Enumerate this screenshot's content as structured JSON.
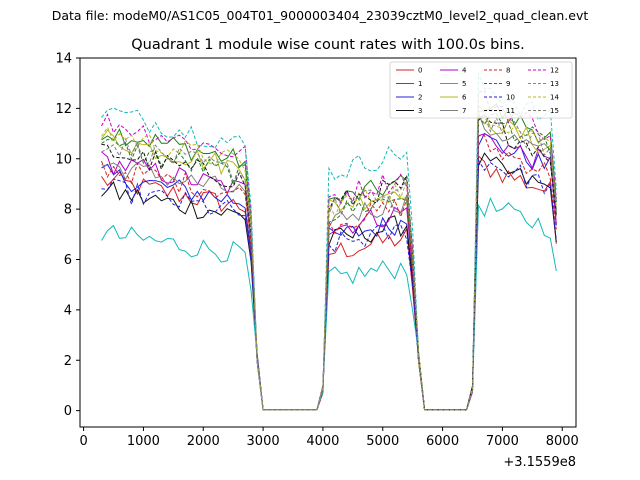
{
  "chart_data": {
    "type": "line",
    "suptitle": "Data file: modeM0/AS1C05_004T01_9000003404_23039cztM0_level2_quad_clean.evt",
    "title": "Quadrant 1 module wise count rates with 100.0s bins.",
    "xlabel": "",
    "ylabel": "",
    "x_offset_label": "+3.1559e8",
    "xlim": [
      -60,
      8230
    ],
    "ylim": [
      -0.65,
      14
    ],
    "x_ticks": [
      0,
      1000,
      2000,
      3000,
      4000,
      5000,
      6000,
      7000,
      8000
    ],
    "y_ticks": [
      0,
      2,
      4,
      6,
      8,
      10,
      12,
      14
    ],
    "x_tick_labels": [
      "0",
      "1000",
      "2000",
      "3000",
      "4000",
      "5000",
      "6000",
      "7000",
      "8000"
    ],
    "y_tick_labels": [
      "0",
      "2",
      "4",
      "6",
      "8",
      "10",
      "12",
      "14"
    ],
    "legend_position": "top-right",
    "bin_start": 300,
    "bin_width": 100,
    "segments": [
      {
        "start": 300,
        "end": 2800
      },
      {
        "start": 4100,
        "end": 5500
      },
      {
        "start": 6600,
        "end": 7900
      }
    ],
    "series": [
      {
        "name": "0",
        "color": "#d62020",
        "dash": false,
        "levels": [
          8.6,
          6.6,
          9.2
        ]
      },
      {
        "name": "1",
        "color": "#1f7f1f",
        "dash": false,
        "levels": [
          10.5,
          8.7,
          11.5
        ]
      },
      {
        "name": "2",
        "color": "#2020e0",
        "dash": false,
        "levels": [
          8.8,
          7.2,
          10.2
        ]
      },
      {
        "name": "3",
        "color": "#111111",
        "dash": false,
        "levels": [
          8.2,
          7.1,
          9.3
        ]
      },
      {
        "name": "4",
        "color": "#b000c8",
        "dash": false,
        "levels": [
          9.3,
          7.6,
          10.3
        ]
      },
      {
        "name": "5",
        "color": "#14b8b8",
        "dash": false,
        "levels": [
          6.6,
          5.5,
          7.7
        ]
      },
      {
        "name": "6",
        "color": "#b8b820",
        "dash": false,
        "levels": [
          10.2,
          8.5,
          11.0
        ]
      },
      {
        "name": "7",
        "color": "#808080",
        "dash": false,
        "levels": [
          9.2,
          8.0,
          10.7
        ]
      },
      {
        "name": "8",
        "color": "#d62020",
        "dash": true,
        "levels": [
          9.1,
          7.8,
          10.0
        ]
      },
      {
        "name": "9",
        "color": "#1f7f1f",
        "dash": true,
        "levels": [
          9.9,
          8.2,
          11.1
        ]
      },
      {
        "name": "10",
        "color": "#2020e0",
        "dash": true,
        "levels": [
          8.3,
          6.9,
          9.4
        ]
      },
      {
        "name": "11",
        "color": "#111111",
        "dash": true,
        "levels": [
          9.7,
          8.6,
          10.8
        ]
      },
      {
        "name": "12",
        "color": "#c800c8",
        "dash": true,
        "levels": [
          10.8,
          8.9,
          11.7
        ]
      },
      {
        "name": "13",
        "color": "#14b8b8",
        "dash": true,
        "levels": [
          11.2,
          9.9,
          12.2
        ]
      },
      {
        "name": "14",
        "color": "#b8b820",
        "dash": true,
        "levels": [
          10.4,
          8.5,
          11.2
        ]
      },
      {
        "name": "15",
        "color": "#808080",
        "dash": true,
        "levels": [
          10.0,
          8.4,
          11.0
        ]
      }
    ]
  }
}
